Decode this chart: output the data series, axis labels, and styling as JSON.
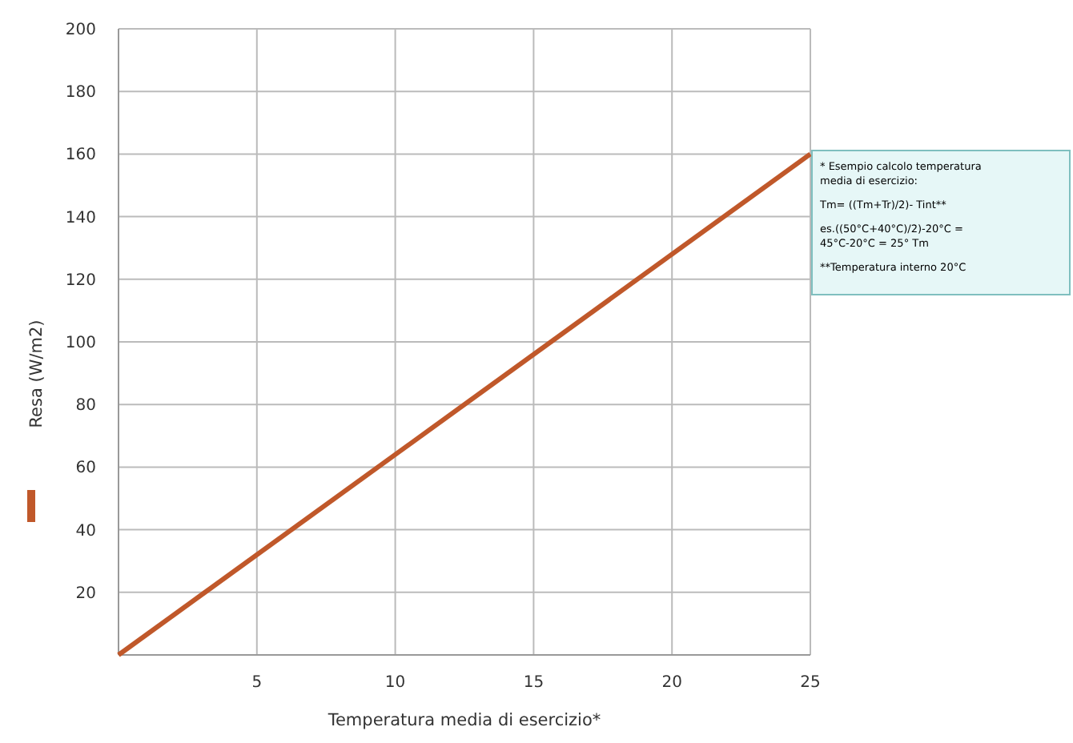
{
  "chart_data": {
    "type": "line",
    "xlabel": "Temperatura media di esercizio*",
    "ylabel": "Resa (W/m2)",
    "x": [
      0,
      25
    ],
    "series": [
      {
        "color": "#c0582a",
        "values": [
          0,
          160
        ]
      }
    ],
    "xlim": [
      0,
      25
    ],
    "xticks": [
      5,
      10,
      15,
      20,
      25
    ],
    "ylim": [
      0,
      200
    ],
    "yticks": [
      20,
      40,
      60,
      80,
      100,
      120,
      140,
      160,
      180,
      200
    ],
    "grid": true,
    "marker": "none",
    "line_style": "solid",
    "annotations": [
      "* Esempio calcolo  temperatura media di esercizio:",
      "Tm= ((Tm+Tr)/2)- Tint**",
      "es.((50°C+40°C)/2)-20°C = 45°C-20°C = 25° Tm",
      "**Temperatura interno 20°C"
    ]
  }
}
